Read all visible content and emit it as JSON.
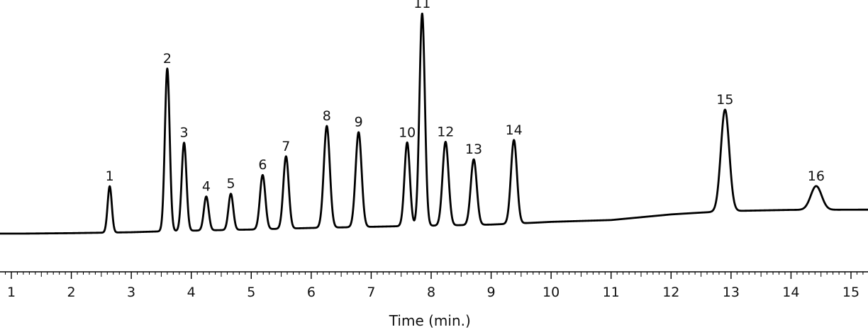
{
  "chart_data": {
    "type": "line",
    "xlabel": "Time (min.)",
    "ylabel": "",
    "title": "",
    "xlim": [
      0.8,
      15.3
    ],
    "ylim": [
      -2,
      101
    ],
    "grid": false,
    "legend": "none",
    "colors": {
      "trace": "#000000",
      "axis": "#000000",
      "text": "#111111"
    },
    "x_ticks": [
      1,
      2,
      3,
      4,
      5,
      6,
      7,
      8,
      9,
      10,
      11,
      12,
      13,
      14,
      15
    ],
    "x_tick_labels": [
      "1",
      "2",
      "3",
      "4",
      "5",
      "6",
      "7",
      "8",
      "9",
      "10",
      "11",
      "12",
      "13",
      "14",
      "15"
    ],
    "baseline": [
      [
        0.8,
        0.0
      ],
      [
        1.2,
        0.0
      ],
      [
        2.0,
        0.2
      ],
      [
        3.0,
        0.6
      ],
      [
        3.5,
        1.0
      ],
      [
        4.0,
        1.3
      ],
      [
        5.0,
        1.8
      ],
      [
        6.0,
        2.5
      ],
      [
        7.0,
        3.0
      ],
      [
        7.5,
        3.3
      ],
      [
        8.0,
        3.5
      ],
      [
        9.0,
        4.0
      ],
      [
        9.7,
        4.8
      ],
      [
        10.0,
        5.2
      ],
      [
        11.0,
        6.0
      ],
      [
        12.0,
        8.5
      ],
      [
        12.5,
        9.3
      ],
      [
        13.0,
        10.0
      ],
      [
        14.0,
        10.5
      ],
      [
        15.3,
        10.6
      ]
    ],
    "peaks": [
      {
        "label": "1",
        "rt": 2.64,
        "height": 20.5,
        "width": 0.035
      },
      {
        "label": "2",
        "rt": 3.6,
        "height": 72.0,
        "width": 0.04
      },
      {
        "label": "3",
        "rt": 3.88,
        "height": 39.0,
        "width": 0.04
      },
      {
        "label": "4",
        "rt": 4.25,
        "height": 15.0,
        "width": 0.04
      },
      {
        "label": "5",
        "rt": 4.66,
        "height": 16.0,
        "width": 0.04
      },
      {
        "label": "6",
        "rt": 5.19,
        "height": 24.0,
        "width": 0.045
      },
      {
        "label": "7",
        "rt": 5.58,
        "height": 32.0,
        "width": 0.045
      },
      {
        "label": "8",
        "rt": 6.26,
        "height": 45.0,
        "width": 0.05
      },
      {
        "label": "9",
        "rt": 6.79,
        "height": 42.0,
        "width": 0.05
      },
      {
        "label": "10",
        "rt": 7.6,
        "height": 37.0,
        "width": 0.045
      },
      {
        "label": "11",
        "rt": 7.85,
        "height": 94.0,
        "width": 0.045
      },
      {
        "label": "12",
        "rt": 8.24,
        "height": 37.0,
        "width": 0.05
      },
      {
        "label": "13",
        "rt": 8.71,
        "height": 29.0,
        "width": 0.05
      },
      {
        "label": "14",
        "rt": 9.38,
        "height": 37.0,
        "width": 0.05
      },
      {
        "label": "15",
        "rt": 12.9,
        "height": 45.0,
        "width": 0.07
      },
      {
        "label": "16",
        "rt": 14.42,
        "height": 10.5,
        "width": 0.09
      }
    ]
  }
}
